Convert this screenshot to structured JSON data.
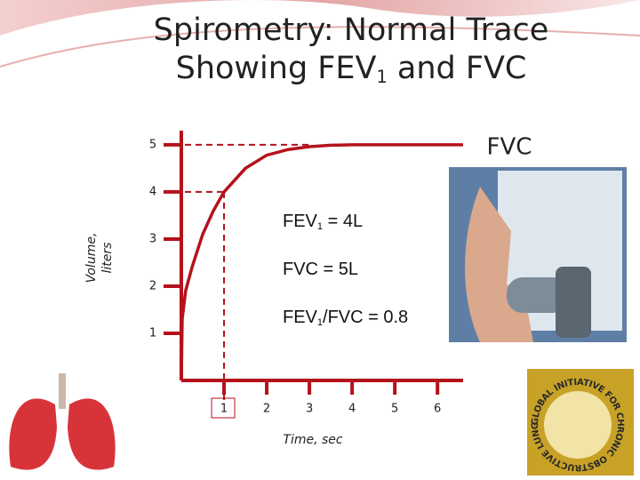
{
  "header": {
    "title_line1": "Spirometry:  Normal Trace",
    "title_line2": [
      "Showing FEV",
      "1",
      " and FVC"
    ]
  },
  "chart_data": {
    "type": "line",
    "x": [
      0,
      0.02,
      0.1,
      0.25,
      0.5,
      0.75,
      1,
      1.5,
      2,
      2.5,
      3,
      3.5,
      4,
      5,
      6,
      6.6
    ],
    "series": [
      {
        "name": "FVC",
        "color": "#b5121b",
        "values": [
          0,
          1.3,
          1.9,
          2.4,
          3.1,
          3.6,
          4,
          4.5,
          4.78,
          4.9,
          4.96,
          4.99,
          5,
          5,
          5,
          5
        ]
      }
    ],
    "xlabel": "Time, sec",
    "ylabel": [
      "Volume,",
      "liters"
    ],
    "xlim": [
      0,
      6.6
    ],
    "ylim": [
      0,
      5.3
    ],
    "xticks": [
      1,
      2,
      3,
      4,
      5,
      6
    ],
    "yticks": [
      1,
      2,
      3,
      4,
      5
    ],
    "annotations": [
      [
        "FEV",
        "1",
        " = 4L"
      ],
      [
        "FVC  = 5L"
      ],
      [
        "FEV",
        "1",
        "/FVC = 0.8"
      ]
    ]
  },
  "logo": {
    "text": "GLOBAL INITIATIVE FOR CHRONIC OBSTRUCTIVE LUNG DISEASE"
  }
}
